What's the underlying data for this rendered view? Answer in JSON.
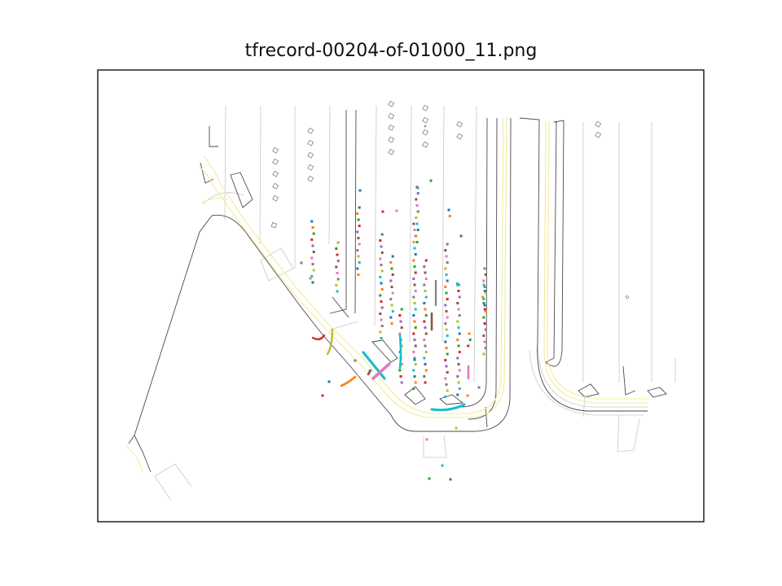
{
  "figure": {
    "title": "tfrecord-00204-of-01000_11.png"
  },
  "legend": null,
  "colors": {
    "lane_boundary": "#8a8a8a",
    "road_edge": "#3a3a3a",
    "center_line": "#f5f0a8",
    "agent_palette": [
      "#1f77b4",
      "#ff7f0e",
      "#2ca02c",
      "#d62728",
      "#9467bd",
      "#8c564b",
      "#e377c2",
      "#7f7f7f",
      "#bcbd22",
      "#17becf"
    ]
  },
  "map": {
    "type": "top-down road scene with parking lot and agent trajectories",
    "grid": false,
    "axes_ticks": false
  }
}
